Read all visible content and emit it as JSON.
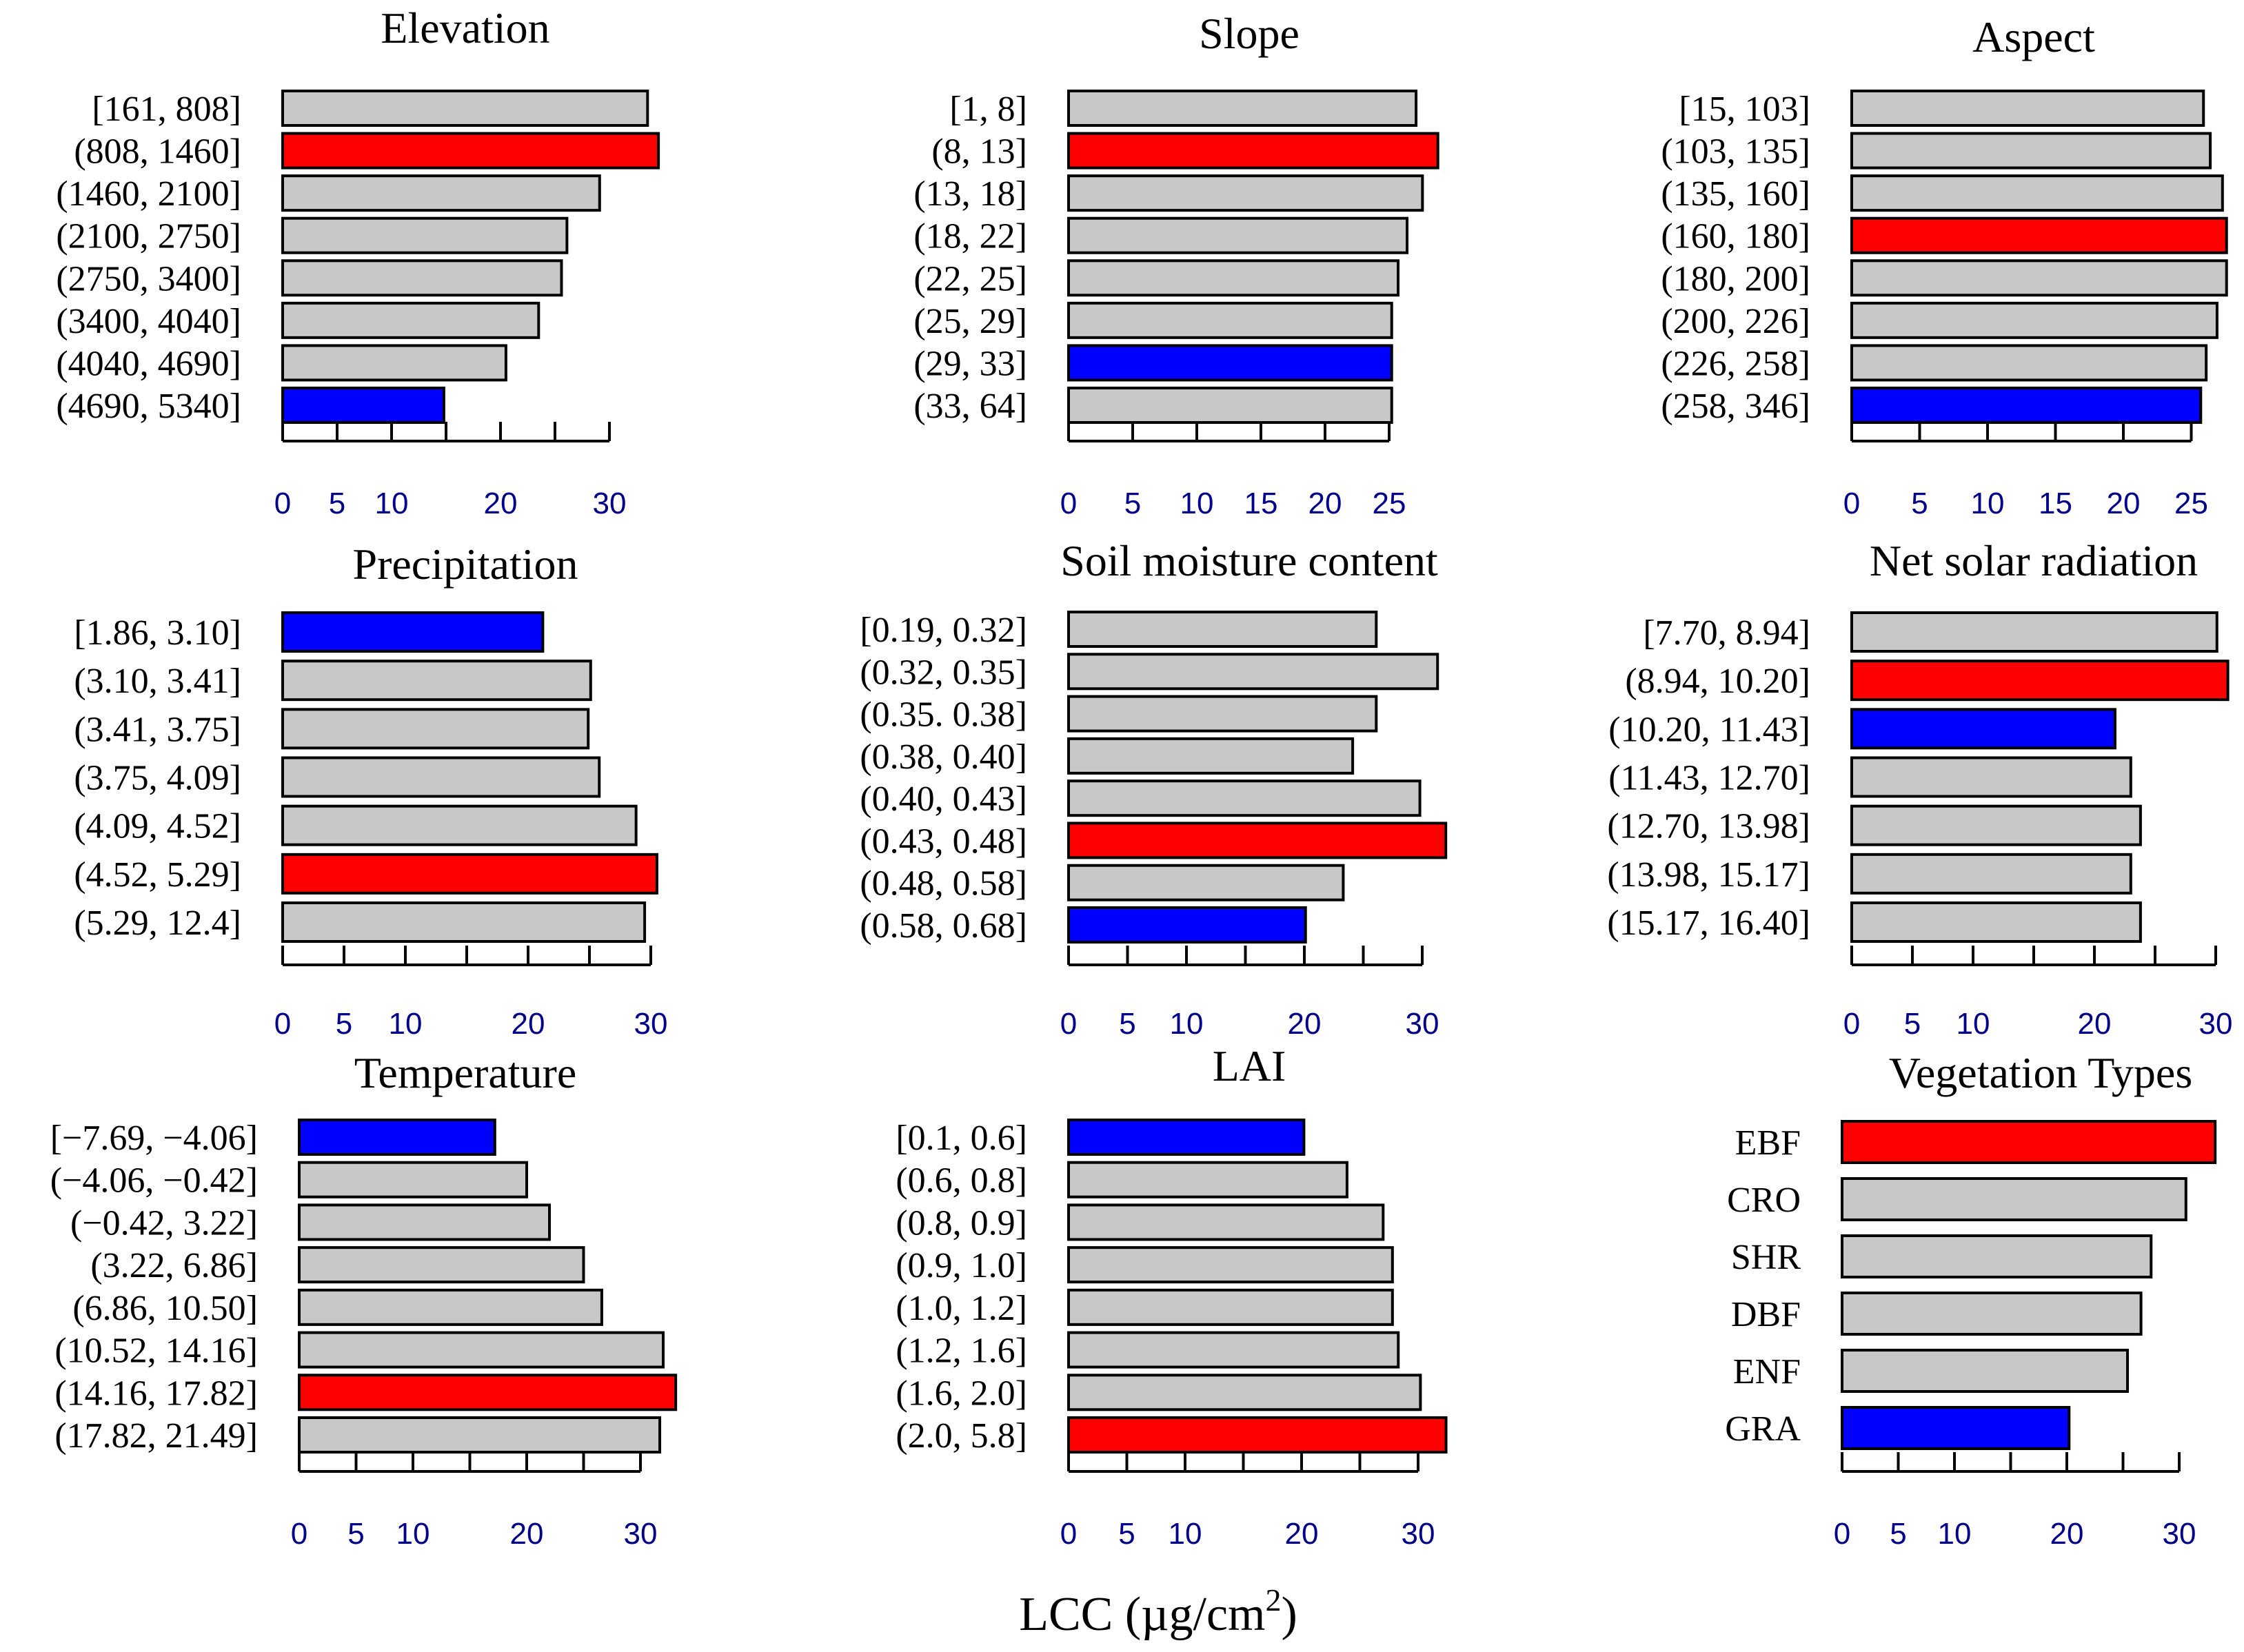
{
  "colors": {
    "default": "#c8c8c8",
    "max": "#ff0000",
    "min": "#0000ff",
    "outline": "#000000",
    "tick_text": "#00008b"
  },
  "xlabel": {
    "prefix": "LCC (µg/cm",
    "superscript": "2",
    "suffix": ")"
  },
  "chart_data": [
    {
      "type": "bar",
      "orientation": "horizontal",
      "title": "Elevation",
      "categories": [
        "[161, 808]",
        "(808, 1460]",
        "(1460, 2100]",
        "(2100, 2750]",
        "(2750, 3400]",
        "(3400, 4040]",
        "(4040, 4690]",
        "(4690, 5340]"
      ],
      "values": [
        33.5,
        34.5,
        29.1,
        26.1,
        25.6,
        23.5,
        20.5,
        14.8
      ],
      "highlight": [
        "default",
        "max",
        "default",
        "default",
        "default",
        "default",
        "default",
        "min"
      ],
      "xticks": [
        0,
        5,
        10,
        20,
        30
      ],
      "xlim": [
        0,
        35
      ]
    },
    {
      "type": "bar",
      "orientation": "horizontal",
      "title": "Slope",
      "categories": [
        "[1, 8]",
        "(8, 13]",
        "(13, 18]",
        "(18, 22]",
        "(22, 25]",
        "(25, 29]",
        "(29, 33]",
        "(33, 64]"
      ],
      "values": [
        27.1,
        28.8,
        27.6,
        26.4,
        25.7,
        25.2,
        25.2,
        25.2
      ],
      "highlight": [
        "default",
        "max",
        "default",
        "default",
        "default",
        "default",
        "min",
        "default"
      ],
      "xticks": [
        0,
        5,
        10,
        15,
        20,
        25
      ],
      "xlim": [
        0,
        30
      ]
    },
    {
      "type": "bar",
      "orientation": "horizontal",
      "title": "Aspect",
      "categories": [
        "[15, 103]",
        "(103, 135]",
        "(135, 160]",
        "(160, 180]",
        "(180, 200]",
        "(200, 226]",
        "(226, 258]",
        "(258, 346]"
      ],
      "values": [
        25.9,
        26.4,
        27.3,
        27.6,
        27.6,
        26.9,
        26.1,
        25.7
      ],
      "highlight": [
        "default",
        "default",
        "default",
        "max",
        "default",
        "default",
        "default",
        "min"
      ],
      "xticks": [
        0,
        5,
        10,
        15,
        20,
        25
      ],
      "xlim": [
        0,
        30
      ]
    },
    {
      "type": "bar",
      "orientation": "horizontal",
      "title": "Precipitation",
      "categories": [
        "[1.86, 3.10]",
        "(3.10, 3.41]",
        "(3.41, 3.75]",
        "(3.75, 4.09]",
        "(4.09, 4.52]",
        "(4.52, 5.29]",
        "(5.29, 12.4]"
      ],
      "values": [
        21.2,
        25.1,
        24.9,
        25.8,
        28.8,
        30.5,
        29.5
      ],
      "highlight": [
        "min",
        "default",
        "default",
        "default",
        "default",
        "max",
        "default"
      ],
      "xticks": [
        0,
        5,
        10,
        20,
        30
      ],
      "xlim": [
        0,
        35
      ]
    },
    {
      "type": "bar",
      "orientation": "horizontal",
      "title": "Soil moisture content",
      "categories": [
        "[0.19, 0.32]",
        "(0.32, 0.35]",
        "(0.35. 0.38]",
        "(0.38, 0.40]",
        "(0.40, 0.43]",
        "(0.43, 0.48]",
        "(0.48, 0.58]",
        "(0.58, 0.68]"
      ],
      "values": [
        26.1,
        31.3,
        26.1,
        24.1,
        29.8,
        32.0,
        23.3,
        20.1
      ],
      "highlight": [
        "default",
        "default",
        "default",
        "default",
        "default",
        "max",
        "default",
        "min"
      ],
      "xticks": [
        0,
        5,
        10,
        20,
        30
      ],
      "xlim": [
        0,
        35
      ]
    },
    {
      "type": "bar",
      "orientation": "horizontal",
      "title": "Net solar radiation",
      "categories": [
        "[7.70, 8.94]",
        "(8.94, 10.20]",
        "(10.20, 11.43]",
        "(11.43, 12.70]",
        "(12.70, 13.98]",
        "(13.98, 15.17]",
        "(15.17, 16.40]"
      ],
      "values": [
        30.1,
        31.0,
        21.7,
        23.0,
        23.8,
        23.0,
        23.8
      ],
      "highlight": [
        "default",
        "max",
        "min",
        "default",
        "default",
        "default",
        "default"
      ],
      "xticks": [
        0,
        5,
        10,
        20,
        30
      ],
      "xlim": [
        0,
        35
      ]
    },
    {
      "type": "bar",
      "orientation": "horizontal",
      "title": "Temperature",
      "categories": [
        "[−7.69, −4.06]",
        "(−4.06, −0.42]",
        "(−0.42, 3.22]",
        "(3.22, 6.86]",
        "(6.86, 10.50]",
        "(10.52, 14.16]",
        "(14.16, 17.82]",
        "(17.82, 21.49]"
      ],
      "values": [
        17.2,
        20.0,
        22.0,
        25.0,
        26.6,
        32.0,
        33.1,
        31.7
      ],
      "highlight": [
        "min",
        "default",
        "default",
        "default",
        "default",
        "default",
        "max",
        "default"
      ],
      "xticks": [
        0,
        5,
        10,
        20,
        30
      ],
      "xlim": [
        0,
        35
      ]
    },
    {
      "type": "bar",
      "orientation": "horizontal",
      "title": "LAI",
      "categories": [
        "[0.1, 0.6]",
        "(0.6, 0.8]",
        "(0.8, 0.9]",
        "(0.9, 1.0]",
        "(1.0, 1.2]",
        "(1.2, 1.6]",
        "(1.6, 2.0]",
        "(2.0, 5.8]"
      ],
      "values": [
        20.2,
        23.9,
        27.0,
        27.8,
        27.8,
        28.3,
        30.2,
        32.4
      ],
      "highlight": [
        "min",
        "default",
        "default",
        "default",
        "default",
        "default",
        "default",
        "max"
      ],
      "xticks": [
        0,
        5,
        10,
        20,
        30
      ],
      "xlim": [
        0,
        35
      ]
    },
    {
      "type": "bar",
      "orientation": "horizontal",
      "title": "Vegetation Types",
      "categories": [
        "EBF",
        "CRO",
        "SHR",
        "DBF",
        "ENF",
        "GRA"
      ],
      "values": [
        33.2,
        30.6,
        27.5,
        26.6,
        25.4,
        20.2
      ],
      "highlight": [
        "max",
        "default",
        "default",
        "default",
        "default",
        "min"
      ],
      "xticks": [
        0,
        5,
        10,
        20,
        30
      ],
      "xlim": [
        0,
        35
      ]
    }
  ]
}
